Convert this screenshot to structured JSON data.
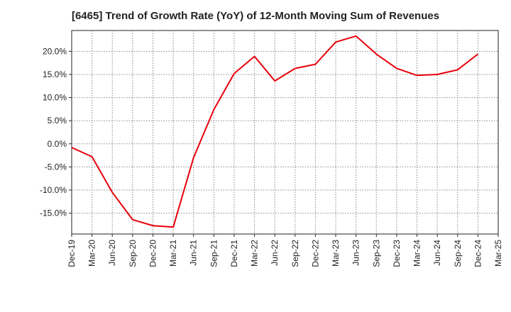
{
  "chart_data": {
    "type": "line",
    "title": "[6465]  Trend of Growth Rate (YoY) of 12-Month Moving Sum of Revenues",
    "xlabel": "",
    "ylabel": "",
    "categories": [
      "Dec-19",
      "Mar-20",
      "Jun-20",
      "Sep-20",
      "Dec-20",
      "Mar-21",
      "Jun-21",
      "Sep-21",
      "Dec-21",
      "Mar-22",
      "Jun-22",
      "Sep-22",
      "Dec-22",
      "Mar-23",
      "Jun-23",
      "Sep-23",
      "Dec-23",
      "Mar-24",
      "Jun-24",
      "Sep-24",
      "Dec-24",
      "Mar-25"
    ],
    "y_ticks": [
      "20.0%",
      "15.0%",
      "10.0%",
      "5.0%",
      "0.0%",
      "-5.0%",
      "-10.0%",
      "-15.0%"
    ],
    "y_tick_values": [
      20,
      15,
      10,
      5,
      0,
      -5,
      -10,
      -15
    ],
    "ylim": [
      -19.5,
      24.5
    ],
    "grid": true,
    "series": [
      {
        "color": "#e8000b",
        "values": [
          -0.8,
          -2.8,
          -10.5,
          -16.4,
          -17.7,
          -18.0,
          -3.0,
          7.4,
          15.2,
          18.9,
          13.6,
          16.3,
          17.2,
          22.0,
          23.3,
          19.4,
          16.3,
          14.8,
          15.0,
          16.0,
          19.4,
          null
        ]
      }
    ]
  }
}
